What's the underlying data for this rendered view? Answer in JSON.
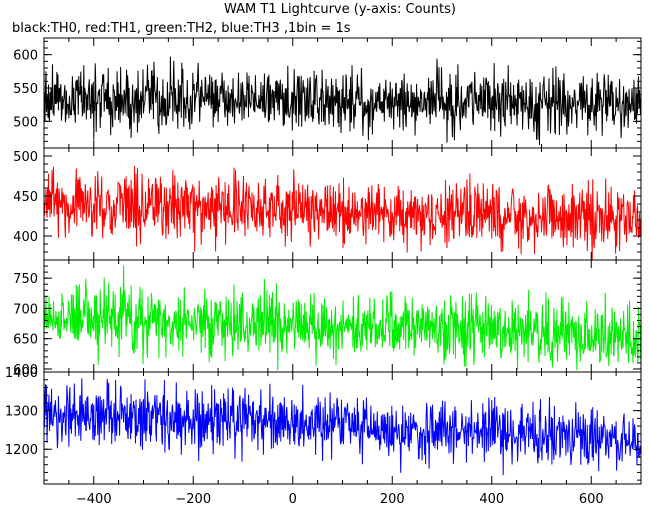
{
  "chart_data": {
    "type": "line",
    "title": "WAM T1 Lightcurve (y-axis: Counts)",
    "subtitle": "black:TH0, red:TH1, green:TH2, blue:TH3 ,1bin = 1s",
    "x_range": [
      -500,
      700
    ],
    "x_ticks": [
      -400,
      -200,
      0,
      200,
      400,
      600
    ],
    "x_tick_labels": [
      "−400",
      "−200",
      "0",
      "200",
      "400",
      "600"
    ],
    "panels": [
      {
        "color": "#000000",
        "y_range": [
          460,
          625
        ],
        "y_ticks": [
          500,
          550,
          600
        ],
        "trend": [
          [
            -500,
            538
          ],
          [
            700,
            526
          ]
        ],
        "noise_sd": 23
      },
      {
        "color": "#ff0000",
        "y_range": [
          370,
          510
        ],
        "y_ticks": [
          400,
          450,
          500
        ],
        "trend": [
          [
            -500,
            441
          ],
          [
            700,
            420
          ]
        ],
        "noise_sd": 20
      },
      {
        "color": "#00ee00",
        "y_range": [
          595,
          780
        ],
        "y_ticks": [
          600,
          650,
          700,
          750
        ],
        "trend": [
          [
            -500,
            690
          ],
          [
            700,
            655
          ]
        ],
        "noise_sd": 26
      },
      {
        "color": "#0000ff",
        "y_range": [
          1110,
          1400
        ],
        "y_ticks": [
          1200,
          1300,
          1400
        ],
        "trend": [
          [
            -500,
            1295
          ],
          [
            700,
            1225
          ]
        ],
        "noise_sd": 38
      }
    ]
  }
}
